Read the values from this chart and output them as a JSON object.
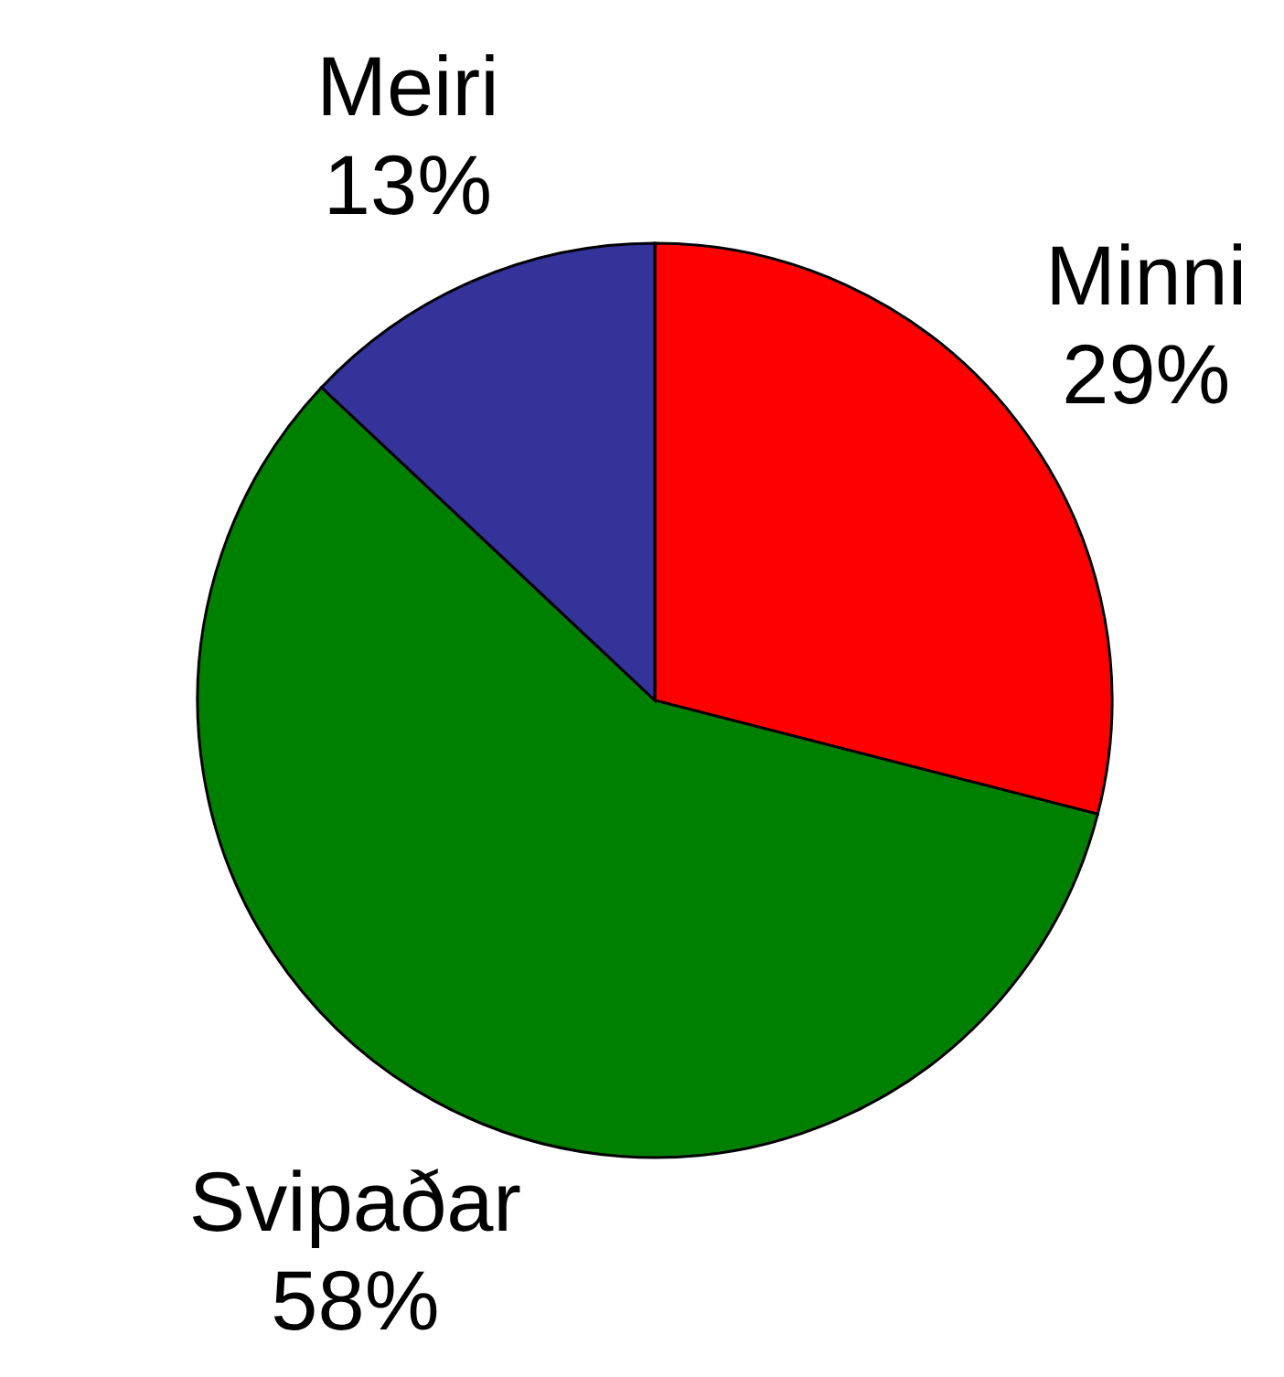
{
  "chart_data": {
    "type": "pie",
    "categories": [
      "Minni",
      "Svipaðar",
      "Meiri"
    ],
    "values": [
      29,
      58,
      13
    ],
    "colors": [
      "#ff0000",
      "#008000",
      "#333399"
    ],
    "value_labels": [
      "29%",
      "58%",
      "13%"
    ]
  }
}
